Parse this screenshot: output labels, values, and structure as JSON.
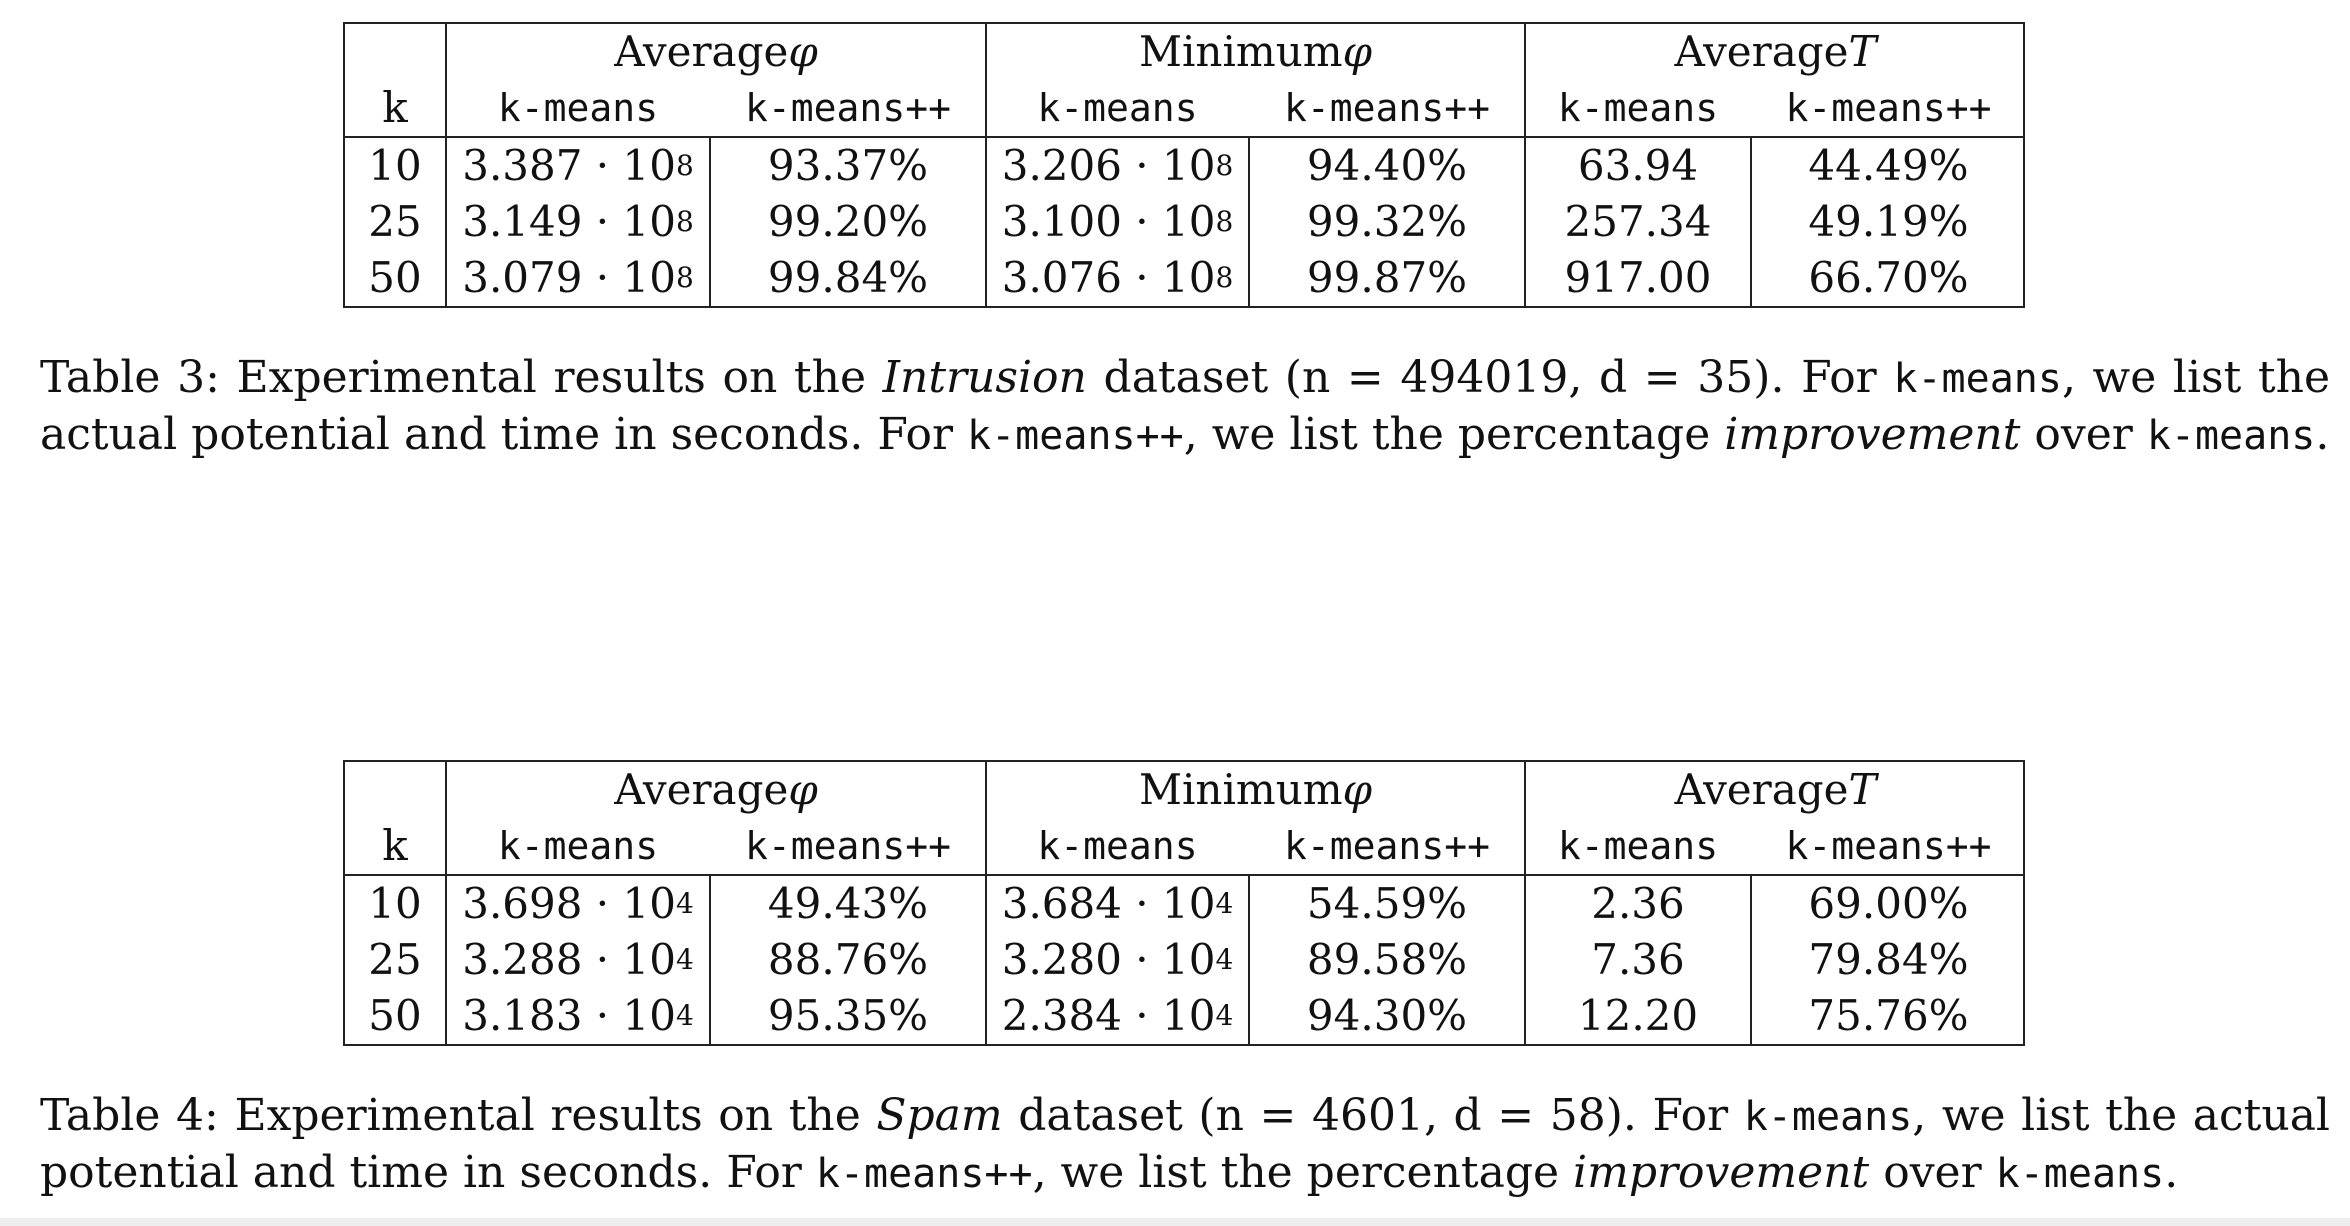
{
  "tables": [
    {
      "group_headers": [
        "Average φ",
        "Minimum φ",
        "Average T"
      ],
      "group_headers_parts": [
        {
          "text": "Average ",
          "sym": "φ"
        },
        {
          "text": "Minimum ",
          "sym": "φ"
        },
        {
          "text": "Average ",
          "sym": "T"
        }
      ],
      "k_label": "k",
      "sub_headers": [
        "k-means",
        "k-means++",
        "k-means",
        "k-means++",
        "k-means",
        "k-means++"
      ],
      "rows": [
        {
          "k": "10",
          "avg_phi_kmeans_mant": "3.387 · 10",
          "avg_phi_kmeans_exp": "8",
          "avg_phi_kmeanspp": "93.37%",
          "min_phi_kmeans_mant": "3.206 · 10",
          "min_phi_kmeans_exp": "8",
          "min_phi_kmeanspp": "94.40%",
          "avg_t_kmeans": "63.94",
          "avg_t_kmeanspp": "44.49%"
        },
        {
          "k": "25",
          "avg_phi_kmeans_mant": "3.149 · 10",
          "avg_phi_kmeans_exp": "8",
          "avg_phi_kmeanspp": "99.20%",
          "min_phi_kmeans_mant": "3.100 · 10",
          "min_phi_kmeans_exp": "8",
          "min_phi_kmeanspp": "99.32%",
          "avg_t_kmeans": "257.34",
          "avg_t_kmeanspp": "49.19%"
        },
        {
          "k": "50",
          "avg_phi_kmeans_mant": "3.079 · 10",
          "avg_phi_kmeans_exp": "8",
          "avg_phi_kmeanspp": "99.84%",
          "min_phi_kmeans_mant": "3.076 · 10",
          "min_phi_kmeans_exp": "8",
          "min_phi_kmeanspp": "99.87%",
          "avg_t_kmeans": "917.00",
          "avg_t_kmeanspp": "66.70%"
        }
      ],
      "caption": {
        "label": "Table 3:",
        "p1": " Experimental results on the ",
        "dataset": "Intrusion",
        "p2": " dataset (n = 494019, d = 35). For ",
        "code1": "k-means",
        "p3": ", we list the actual potential and time in seconds. For ",
        "code2": "k-means++",
        "p4": ", we list the percentage ",
        "emph": "improvement",
        "p5": " over ",
        "code3": "k-means",
        "p6": "."
      }
    },
    {
      "group_headers": [
        "Average φ",
        "Minimum φ",
        "Average T"
      ],
      "group_headers_parts": [
        {
          "text": "Average ",
          "sym": "φ"
        },
        {
          "text": "Minimum ",
          "sym": "φ"
        },
        {
          "text": "Average ",
          "sym": "T"
        }
      ],
      "k_label": "k",
      "sub_headers": [
        "k-means",
        "k-means++",
        "k-means",
        "k-means++",
        "k-means",
        "k-means++"
      ],
      "rows": [
        {
          "k": "10",
          "avg_phi_kmeans_mant": "3.698 · 10",
          "avg_phi_kmeans_exp": "4",
          "avg_phi_kmeanspp": "49.43%",
          "min_phi_kmeans_mant": "3.684 · 10",
          "min_phi_kmeans_exp": "4",
          "min_phi_kmeanspp": "54.59%",
          "avg_t_kmeans": "2.36",
          "avg_t_kmeanspp": "69.00%"
        },
        {
          "k": "25",
          "avg_phi_kmeans_mant": "3.288 · 10",
          "avg_phi_kmeans_exp": "4",
          "avg_phi_kmeanspp": "88.76%",
          "min_phi_kmeans_mant": "3.280 · 10",
          "min_phi_kmeans_exp": "4",
          "min_phi_kmeanspp": "89.58%",
          "avg_t_kmeans": "7.36",
          "avg_t_kmeanspp": "79.84%"
        },
        {
          "k": "50",
          "avg_phi_kmeans_mant": "3.183 · 10",
          "avg_phi_kmeans_exp": "4",
          "avg_phi_kmeanspp": "95.35%",
          "min_phi_kmeans_mant": "2.384 · 10",
          "min_phi_kmeans_exp": "4",
          "min_phi_kmeanspp": "94.30%",
          "avg_t_kmeans": "12.20",
          "avg_t_kmeanspp": "75.76%"
        }
      ],
      "caption": {
        "label": "Table 4:",
        "p1": " Experimental results on the ",
        "dataset": "Spam",
        "p2": " dataset (n = 4601, d = 58). For ",
        "code1": "k-means",
        "p3": ", we list the actual potential and time in seconds. For ",
        "code2": "k-means++",
        "p4": ", we list the percentage ",
        "emph": "improvement",
        "p5": " over ",
        "code3": "k-means",
        "p6": "."
      }
    }
  ]
}
